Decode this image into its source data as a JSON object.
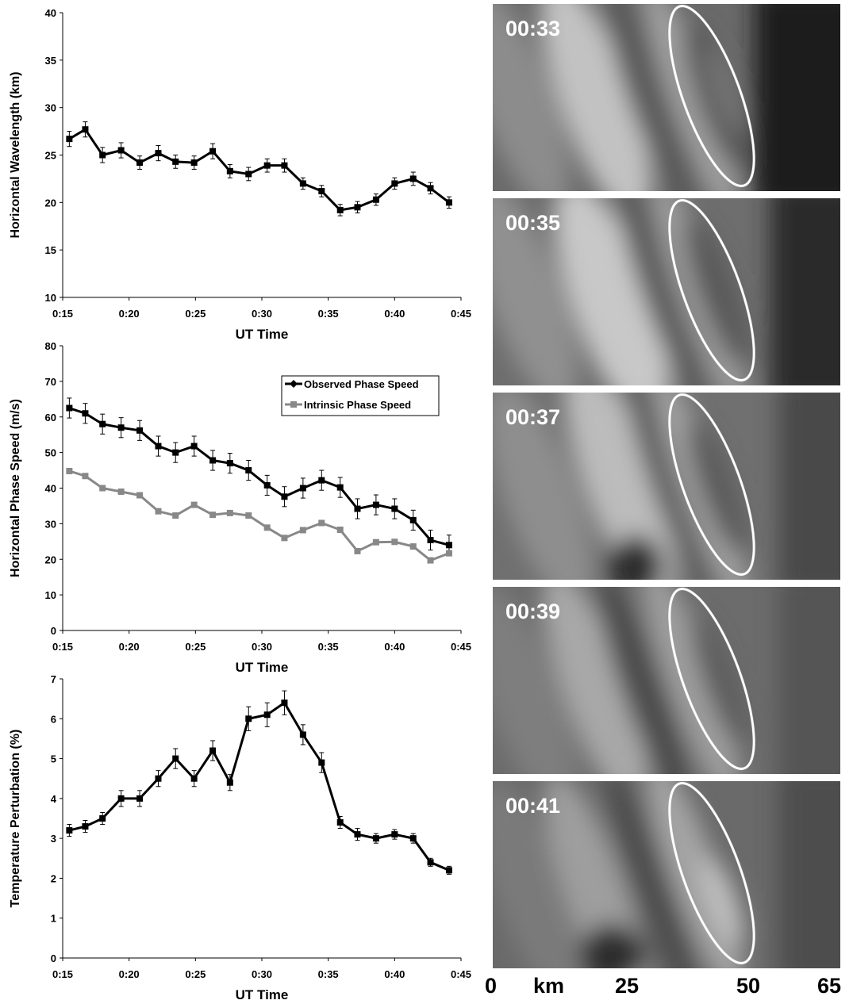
{
  "chart_data": [
    {
      "type": "line",
      "xlabel": "UT Time",
      "ylabel": "Horizontal Wavelength (km)",
      "xlim": [
        0.25,
        0.75
      ],
      "ylim": [
        10,
        40
      ],
      "xticks": [
        "0:15",
        "0:20",
        "0:25",
        "0:30",
        "0:35",
        "0:40",
        "0:45"
      ],
      "yticks": [
        "10",
        "15",
        "20",
        "25",
        "30",
        "35",
        "40"
      ],
      "x": [
        "0:15.5",
        "0:16.7",
        "0:18",
        "0:19.4",
        "0:20.8",
        "0:22.2",
        "0:23.5",
        "0:24.9",
        "0:26.3",
        "0:27.6",
        "0:29",
        "0:30.4",
        "0:31.7",
        "0:33.1",
        "0:34.5",
        "0:35.9",
        "0:37.2",
        "0:38.6",
        "0:40",
        "0:41.4",
        "0:42.7",
        "0:44.1"
      ],
      "series": [
        {
          "values": [
            26.7,
            27.7,
            25,
            25.5,
            24.2,
            25.2,
            24.3,
            24.2,
            25.4,
            23.3,
            23,
            23.9,
            23.9,
            22,
            21.2,
            19.2,
            19.5,
            20.3,
            22,
            22.5,
            21.5,
            20
          ],
          "error": [
            0.8,
            0.8,
            0.8,
            0.8,
            0.7,
            0.8,
            0.7,
            0.7,
            0.8,
            0.7,
            0.7,
            0.7,
            0.7,
            0.6,
            0.6,
            0.6,
            0.6,
            0.6,
            0.6,
            0.7,
            0.6,
            0.6
          ]
        }
      ]
    },
    {
      "type": "line",
      "xlabel": "UT Time",
      "ylabel": "Horizontal Phase Speed (m/s)",
      "xlim": [
        0.25,
        0.75
      ],
      "ylim": [
        0,
        80
      ],
      "xticks": [
        "0:15",
        "0:20",
        "0:25",
        "0:30",
        "0:35",
        "0:40",
        "0:45"
      ],
      "yticks": [
        "0",
        "10",
        "20",
        "30",
        "40",
        "50",
        "60",
        "70",
        "80"
      ],
      "legend": "top-right",
      "x": [
        "0:15.5",
        "0:16.7",
        "0:18",
        "0:19.4",
        "0:20.8",
        "0:22.2",
        "0:23.5",
        "0:24.9",
        "0:26.3",
        "0:27.6",
        "0:29",
        "0:30.4",
        "0:31.7",
        "0:33.1",
        "0:34.5",
        "0:35.9",
        "0:37.2",
        "0:38.6",
        "0:40",
        "0:41.4",
        "0:42.7",
        "0:44.1"
      ],
      "series": [
        {
          "name": "Observed Phase Speed",
          "color": "#000000",
          "values": [
            62.5,
            61,
            58,
            57,
            56.2,
            51.8,
            50,
            51.8,
            47.8,
            47,
            45,
            40.8,
            37.6,
            40,
            42.2,
            40.2,
            34.2,
            35.3,
            34.2,
            31,
            25.4,
            24
          ],
          "error": [
            2.8,
            2.8,
            2.8,
            2.8,
            2.8,
            2.8,
            2.8,
            2.8,
            2.8,
            2.8,
            2.8,
            2.8,
            2.8,
            2.8,
            2.8,
            2.8,
            2.8,
            2.8,
            2.8,
            2.8,
            2.8,
            2.8
          ]
        },
        {
          "name": "Intrinsic Phase Speed",
          "color": "#888888",
          "values": [
            44.8,
            43.4,
            40,
            39,
            38,
            33.5,
            32.3,
            35.3,
            32.5,
            33,
            32.3,
            28.9,
            26,
            28.2,
            30.2,
            28.3,
            22.3,
            24.8,
            24.9,
            23.6,
            19.7,
            21.7
          ]
        }
      ]
    },
    {
      "type": "line",
      "xlabel": "UT Time",
      "ylabel": "Temperature Perturbation (%)",
      "xlim": [
        0.25,
        0.75
      ],
      "ylim": [
        0,
        7
      ],
      "xticks": [
        "0:15",
        "0:20",
        "0:25",
        "0:30",
        "0:35",
        "0:40",
        "0:45"
      ],
      "yticks": [
        "0",
        "1",
        "2",
        "3",
        "4",
        "5",
        "6",
        "7"
      ],
      "x": [
        "0:15.5",
        "0:16.7",
        "0:18",
        "0:19.4",
        "0:20.8",
        "0:22.2",
        "0:23.5",
        "0:24.9",
        "0:26.3",
        "0:27.6",
        "0:29",
        "0:30.4",
        "0:31.7",
        "0:33.1",
        "0:34.5",
        "0:35.9",
        "0:37.2",
        "0:38.6",
        "0:40",
        "0:41.4",
        "0:42.7",
        "0:44.1"
      ],
      "series": [
        {
          "values": [
            3.2,
            3.3,
            3.5,
            4,
            4,
            4.5,
            5,
            4.5,
            5.2,
            4.4,
            6,
            6.1,
            6.4,
            5.6,
            4.9,
            3.4,
            3.1,
            3,
            3.1,
            3,
            2.4,
            2.2
          ],
          "error": [
            0.15,
            0.15,
            0.15,
            0.2,
            0.2,
            0.2,
            0.25,
            0.2,
            0.25,
            0.2,
            0.3,
            0.3,
            0.3,
            0.25,
            0.25,
            0.15,
            0.15,
            0.12,
            0.12,
            0.12,
            0.1,
            0.1
          ]
        }
      ]
    }
  ],
  "panels": [
    {
      "label": "00:33"
    },
    {
      "label": "00:35"
    },
    {
      "label": "00:37"
    },
    {
      "label": "00:39"
    },
    {
      "label": "00:41"
    }
  ],
  "scale": {
    "labels": [
      "0",
      "km",
      "25",
      "50",
      "65"
    ]
  }
}
